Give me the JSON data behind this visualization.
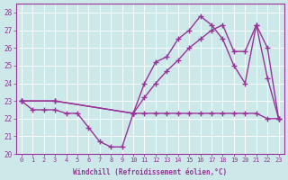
{
  "xlabel": "Windchill (Refroidissement éolien,°C)",
  "bg_color": "#cce8e8",
  "line_color": "#993399",
  "ylim": [
    20,
    28.5
  ],
  "xlim": [
    -0.5,
    23.5
  ],
  "yticks": [
    20,
    21,
    22,
    23,
    24,
    25,
    26,
    27,
    28
  ],
  "xticks": [
    0,
    1,
    2,
    3,
    4,
    5,
    6,
    7,
    8,
    9,
    10,
    11,
    12,
    13,
    14,
    15,
    16,
    17,
    18,
    19,
    20,
    21,
    22,
    23
  ],
  "line1_x": [
    0,
    1,
    2,
    3,
    4,
    5,
    6,
    7,
    8,
    9,
    10,
    11,
    12,
    13,
    14,
    15,
    16,
    17,
    18,
    19,
    20,
    21,
    22,
    23
  ],
  "line1_y": [
    23.0,
    22.5,
    22.5,
    22.5,
    22.3,
    22.3,
    21.5,
    20.7,
    20.4,
    20.4,
    22.3,
    22.3,
    22.3,
    22.3,
    22.3,
    22.3,
    22.3,
    22.3,
    22.3,
    22.3,
    22.3,
    22.3,
    22.0,
    22.0
  ],
  "line2_x": [
    0,
    3,
    10,
    11,
    12,
    13,
    14,
    15,
    16,
    17,
    18,
    19,
    20,
    21,
    22,
    23
  ],
  "line2_y": [
    23.0,
    23.0,
    22.3,
    24.0,
    25.2,
    25.5,
    26.5,
    27.0,
    27.8,
    27.3,
    26.5,
    25.0,
    24.0,
    27.3,
    26.0,
    22.0
  ],
  "line3_x": [
    0,
    3,
    10,
    11,
    12,
    13,
    14,
    15,
    16,
    17,
    18,
    19,
    20,
    21,
    22,
    23
  ],
  "line3_y": [
    23.0,
    23.0,
    22.3,
    23.2,
    24.0,
    24.7,
    25.3,
    26.0,
    26.5,
    27.0,
    27.3,
    25.8,
    25.8,
    27.3,
    24.3,
    22.0
  ]
}
